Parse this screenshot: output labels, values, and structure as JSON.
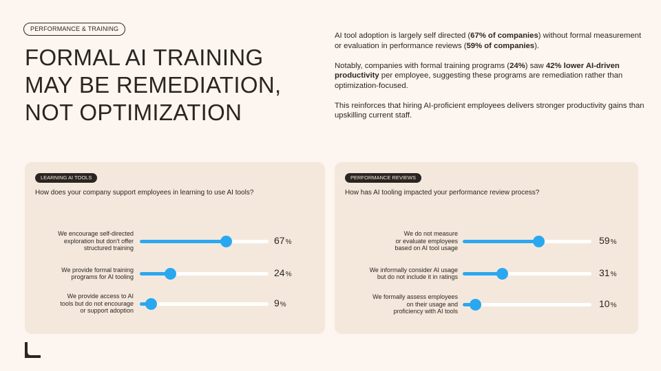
{
  "tag": "PERFORMANCE & TRAINING",
  "headline": [
    "FORMAL AI TRAINING",
    "MAY BE REMEDIATION,",
    "NOT OPTIMIZATION"
  ],
  "intro": {
    "p1": [
      {
        "t": "AI tool adoption is largely self directed (",
        "b": false
      },
      {
        "t": "67% of companies",
        "b": true
      },
      {
        "t": ") without formal measurement or evaluation in performance reviews (",
        "b": false
      },
      {
        "t": "59% of companies",
        "b": true
      },
      {
        "t": ").",
        "b": false
      }
    ],
    "p2": [
      {
        "t": "Notably, companies with formal training programs (",
        "b": false
      },
      {
        "t": "24%",
        "b": true
      },
      {
        "t": ") saw ",
        "b": false
      },
      {
        "t": "42% lower AI-driven productivity",
        "b": true
      },
      {
        "t": " per employee, suggesting these programs are remediation rather than optimization-focused.",
        "b": false
      }
    ],
    "p3": [
      {
        "t": "This reinforces that hiring AI-proficient employees delivers stronger productivity gains than upskilling current staff.",
        "b": false
      }
    ]
  },
  "colors": {
    "accent": "#29a8f0",
    "background": "#fdf5ef",
    "panel": "#f4e8dc",
    "text": "#2a2522"
  },
  "panels": [
    {
      "pill": "LEARNING AI TOOLS",
      "question": "How does your company support employees in learning to use AI tools?",
      "rows": [
        {
          "label": [
            "We encourage self-directed",
            "exploration but don't offer",
            "structured training"
          ],
          "value": 67,
          "value_text": "67",
          "unit": "%"
        },
        {
          "label": [
            "We provide formal training",
            "programs for AI tooling"
          ],
          "value": 24,
          "value_text": "24",
          "unit": "%"
        },
        {
          "label": [
            "We provide access to AI",
            "tools but do not encourage",
            "or support adoption"
          ],
          "value": 9,
          "value_text": "9",
          "unit": "%"
        }
      ]
    },
    {
      "pill": "PERFORMANCE REVIEWS",
      "question": "How has AI tooling impacted your performance review process?",
      "rows": [
        {
          "label": [
            "We do not measure",
            "or evaluate employees",
            "based on AI tool usage"
          ],
          "value": 59,
          "value_text": "59",
          "unit": "%"
        },
        {
          "label": [
            "We informally consider AI usage",
            "but do not include it in ratings"
          ],
          "value": 31,
          "value_text": "31",
          "unit": "%"
        },
        {
          "label": [
            "We formally assess employees",
            "on their usage and",
            "proficiency with AI tools"
          ],
          "value": 10,
          "value_text": "10",
          "unit": "%"
        }
      ]
    }
  ],
  "logo_icon": "corner-bracket-logo-icon"
}
